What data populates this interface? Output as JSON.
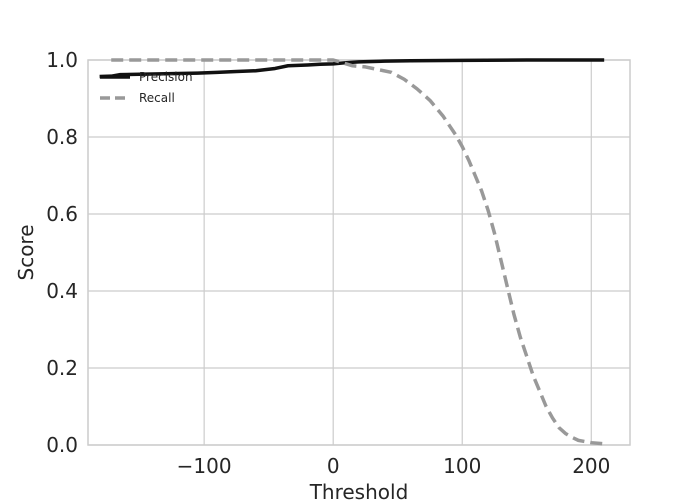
{
  "chart_data": {
    "type": "line",
    "title": "",
    "xlabel": "Threshold",
    "ylabel": "Score",
    "xlim": [
      -190,
      230
    ],
    "ylim": [
      0.0,
      1.0
    ],
    "x_ticks": [
      -100,
      0,
      100,
      200
    ],
    "x_tick_labels": [
      "−100",
      "0",
      "100",
      "200"
    ],
    "y_ticks": [
      0.0,
      0.2,
      0.4,
      0.6,
      0.8,
      1.0
    ],
    "y_tick_labels": [
      "0.0",
      "0.2",
      "0.4",
      "0.6",
      "0.8",
      "1.0"
    ],
    "grid": true,
    "legend_position": "top-left",
    "series": [
      {
        "name": "Precision",
        "color": "#111111",
        "style": "solid",
        "points": [
          [
            -181,
            0.957
          ],
          [
            -172,
            0.958
          ],
          [
            -165,
            0.962
          ],
          [
            -150,
            0.963
          ],
          [
            -135,
            0.964
          ],
          [
            -120,
            0.965
          ],
          [
            -105,
            0.966
          ],
          [
            -90,
            0.968
          ],
          [
            -75,
            0.97
          ],
          [
            -60,
            0.972
          ],
          [
            -45,
            0.978
          ],
          [
            -35,
            0.985
          ],
          [
            -20,
            0.987
          ],
          [
            -10,
            0.989
          ],
          [
            0,
            0.99
          ],
          [
            10,
            0.993
          ],
          [
            20,
            0.995
          ],
          [
            40,
            0.997
          ],
          [
            60,
            0.998
          ],
          [
            100,
            0.999
          ],
          [
            150,
            1.0
          ],
          [
            210,
            1.0
          ]
        ]
      },
      {
        "name": "Recall",
        "color": "#999999",
        "style": "dashed",
        "points": [
          [
            -172,
            1.0
          ],
          [
            -100,
            1.0
          ],
          [
            -50,
            1.0
          ],
          [
            0,
            1.0
          ],
          [
            5,
            0.995
          ],
          [
            15,
            0.985
          ],
          [
            25,
            0.982
          ],
          [
            35,
            0.975
          ],
          [
            45,
            0.968
          ],
          [
            55,
            0.95
          ],
          [
            65,
            0.925
          ],
          [
            75,
            0.895
          ],
          [
            85,
            0.855
          ],
          [
            95,
            0.805
          ],
          [
            100,
            0.775
          ],
          [
            105,
            0.74
          ],
          [
            110,
            0.7
          ],
          [
            115,
            0.66
          ],
          [
            120,
            0.61
          ],
          [
            125,
            0.55
          ],
          [
            130,
            0.48
          ],
          [
            135,
            0.41
          ],
          [
            140,
            0.34
          ],
          [
            145,
            0.28
          ],
          [
            150,
            0.23
          ],
          [
            155,
            0.18
          ],
          [
            160,
            0.14
          ],
          [
            165,
            0.1
          ],
          [
            170,
            0.07
          ],
          [
            175,
            0.045
          ],
          [
            180,
            0.03
          ],
          [
            185,
            0.02
          ],
          [
            190,
            0.012
          ],
          [
            200,
            0.006
          ],
          [
            210,
            0.003
          ]
        ]
      }
    ]
  }
}
